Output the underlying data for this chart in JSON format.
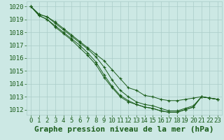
{
  "title": "Graphe pression niveau de la mer (hPa)",
  "background_color": "#cce8e4",
  "grid_color": "#aaccc8",
  "line_color": "#1a5c1a",
  "x_ticks": [
    0,
    1,
    2,
    3,
    4,
    5,
    6,
    7,
    8,
    9,
    10,
    11,
    12,
    13,
    14,
    15,
    16,
    17,
    18,
    19,
    20,
    21,
    22,
    23
  ],
  "y_ticks": [
    1012,
    1013,
    1014,
    1015,
    1016,
    1017,
    1018,
    1019,
    1020
  ],
  "ylim": [
    1011.6,
    1020.4
  ],
  "xlim": [
    -0.5,
    23.5
  ],
  "series": [
    [
      1020.0,
      1019.4,
      1019.2,
      1018.8,
      1018.3,
      1017.8,
      1017.3,
      1016.8,
      1016.3,
      1015.8,
      1015.1,
      1014.4,
      1013.7,
      1013.5,
      1013.1,
      1013.0,
      1012.8,
      1012.7,
      1012.7,
      1012.8,
      1012.9,
      1013.0,
      1012.9,
      1012.8
    ],
    [
      1020.0,
      1019.4,
      1019.2,
      1018.7,
      1018.2,
      1017.7,
      1017.2,
      1016.7,
      1016.1,
      1015.3,
      1014.3,
      1013.5,
      1013.0,
      1012.6,
      1012.4,
      1012.3,
      1012.1,
      1011.9,
      1011.9,
      1012.1,
      1012.3,
      1013.0,
      1012.9,
      1012.8
    ],
    [
      1020.0,
      1019.3,
      1019.0,
      1018.5,
      1018.0,
      1017.5,
      1017.0,
      1016.4,
      1015.7,
      1014.7,
      1013.8,
      1013.1,
      1012.7,
      1012.4,
      1012.2,
      1012.1,
      1011.9,
      1011.8,
      1011.8,
      1012.0,
      1012.2,
      1013.0,
      1012.9,
      1012.8
    ],
    [
      1020.0,
      1019.3,
      1019.0,
      1018.4,
      1017.9,
      1017.4,
      1016.8,
      1016.2,
      1015.5,
      1014.5,
      1013.7,
      1013.0,
      1012.6,
      1012.4,
      1012.2,
      1012.1,
      1011.9,
      1011.8,
      1011.8,
      1012.0,
      1012.2,
      1013.0,
      1012.9,
      1012.8
    ]
  ],
  "title_fontsize": 8,
  "tick_fontsize": 6.5
}
